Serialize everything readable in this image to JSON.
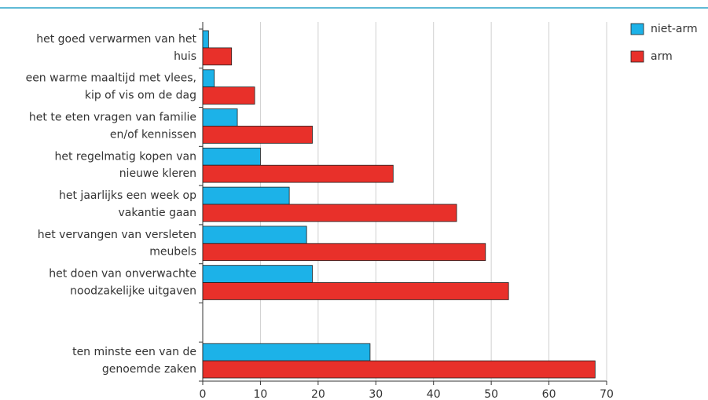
{
  "chart_data": {
    "type": "hbar",
    "categories": [
      [
        "het goed verwarmen van het",
        "huis"
      ],
      [
        "een warme maaltijd met vlees,",
        "kip of vis om de dag"
      ],
      [
        "het te eten vragen van familie",
        "en/of kennissen"
      ],
      [
        "het regelmatig kopen van",
        "nieuwe kleren"
      ],
      [
        "het jaarlijks een week op",
        "vakantie gaan"
      ],
      [
        "het vervangen van versleten",
        "meubels"
      ],
      [
        "het doen van onverwachte",
        "noodzakelijke uitgaven"
      ],
      null,
      [
        "ten minste een van de",
        "genoemde zaken"
      ]
    ],
    "series": [
      {
        "name": "niet-arm",
        "color": "#1cb2e8",
        "values": [
          1,
          2,
          6,
          10,
          15,
          18,
          19,
          null,
          29
        ]
      },
      {
        "name": "arm",
        "color": "#e8302a",
        "values": [
          5,
          9,
          19,
          33,
          44,
          49,
          53,
          null,
          68
        ]
      }
    ],
    "xlim": [
      0,
      70
    ],
    "xticks": [
      0,
      10,
      20,
      30,
      40,
      50,
      60,
      70
    ],
    "grid": true,
    "legend": "top-right"
  }
}
